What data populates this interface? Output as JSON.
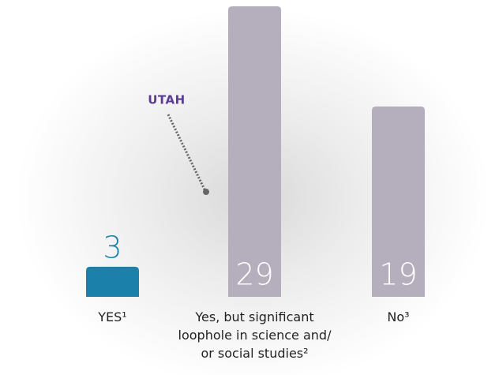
{
  "chart_data": {
    "type": "bar",
    "categories": [
      "YES¹",
      "Yes, but significant loophole in science and/ or social studies²",
      "No³"
    ],
    "values": [
      3,
      29,
      19
    ],
    "colors": [
      "#1b80aa",
      "#b5aebd",
      "#b5aebd"
    ],
    "annotation": "UTAH"
  }
}
